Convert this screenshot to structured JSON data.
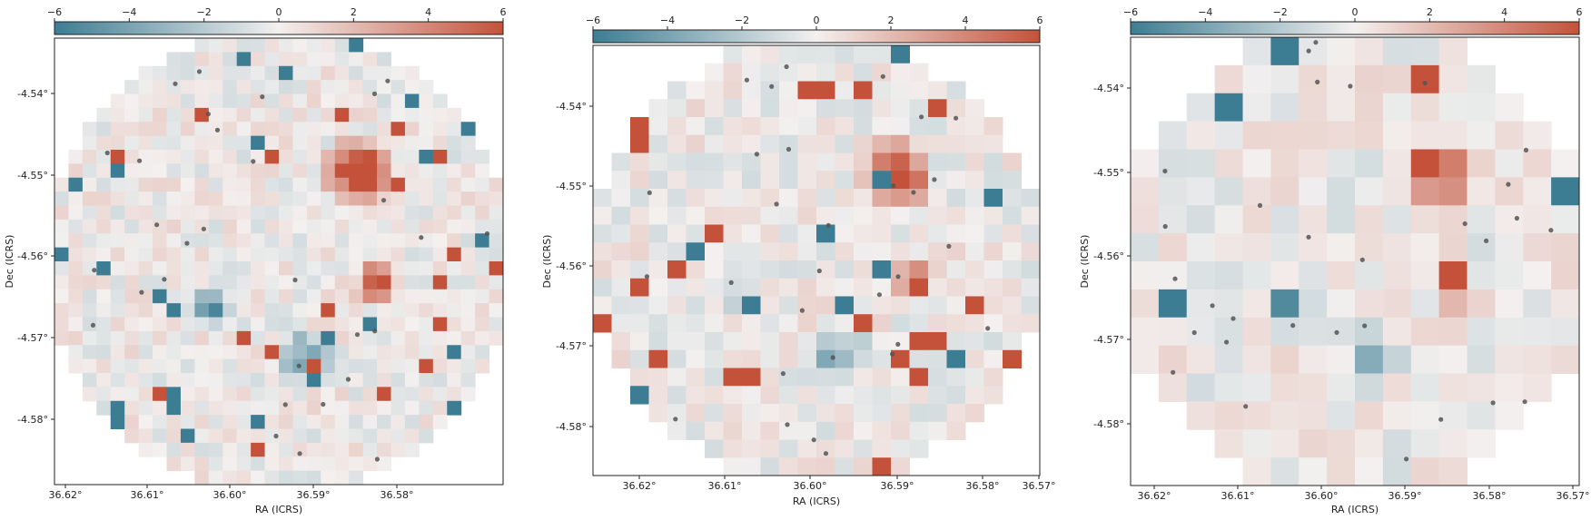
{
  "figure": {
    "background": "#ffffff",
    "colormap": {
      "low": "#3d7d93",
      "mid": "#f3f0ef",
      "high": "#c4523a"
    }
  },
  "chart_data": [
    {
      "type": "heatmap",
      "title": "",
      "xlabel": "RA (ICRS)",
      "ylabel": "Dec (ICRS)",
      "colorbar": {
        "range": [
          -6,
          6
        ],
        "ticks": [
          "−6",
          "−4",
          "−2",
          "0",
          "2",
          "4",
          "6"
        ],
        "placement": "top"
      },
      "xticks": [
        "36.62°",
        "36.61°",
        "36.60°",
        "36.59°",
        "36.58°"
      ],
      "yticks": [
        "-4.54°",
        "-4.55°",
        "-4.56°",
        "-4.57°",
        "-4.58°"
      ],
      "grid": false,
      "points": 30
    },
    {
      "type": "heatmap",
      "title": "",
      "xlabel": "RA (ICRS)",
      "ylabel": "Dec (ICRS)",
      "colorbar": {
        "range": [
          -6,
          6
        ],
        "ticks": [
          "−6",
          "−4",
          "−2",
          "0",
          "2",
          "4",
          "6"
        ],
        "placement": "top"
      },
      "xticks": [
        "36.62°",
        "36.61°",
        "36.60°",
        "36.59°",
        "36.58°",
        "36.57°"
      ],
      "yticks": [
        "-4.54°",
        "-4.55°",
        "-4.56°",
        "-4.57°",
        "-4.58°"
      ],
      "grid": false,
      "points": 30
    },
    {
      "type": "heatmap",
      "title": "",
      "xlabel": "RA (ICRS)",
      "ylabel": "Dec (ICRS)",
      "colorbar": {
        "range": [
          -6,
          6
        ],
        "ticks": [
          "−6",
          "−4",
          "−2",
          "0",
          "2",
          "4",
          "6"
        ],
        "placement": "top"
      },
      "xticks": [
        "36.62°",
        "36.61°",
        "36.60°",
        "36.59°",
        "36.58°",
        "36.57°"
      ],
      "yticks": [
        "-4.54°",
        "-4.55°",
        "-4.56°",
        "-4.57°",
        "-4.58°"
      ],
      "grid": false,
      "points": 30
    }
  ]
}
